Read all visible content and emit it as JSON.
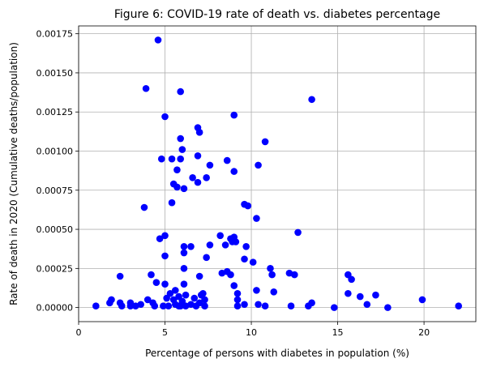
{
  "chart_data": {
    "type": "scatter",
    "title": "Figure 6: COVID-19 rate of death vs. diabetes percentage",
    "xlabel": "Percentage of persons with diabetes in population (%)",
    "ylabel": "Rate of death in 2020 (Cumulative deaths/population)",
    "xlim": [
      0,
      23
    ],
    "ylim": [
      -9e-05,
      0.0018
    ],
    "xticks": [
      0,
      5,
      10,
      15,
      20
    ],
    "xtick_labels": [
      "0",
      "5",
      "10",
      "15",
      "20"
    ],
    "yticks": [
      0,
      0.00025,
      0.0005,
      0.00075,
      0.001,
      0.00125,
      0.0015,
      0.00175
    ],
    "ytick_labels": [
      "0.00000",
      "0.00025",
      "0.00050",
      "0.00075",
      "0.00100",
      "0.00125",
      "0.00150",
      "0.00175"
    ],
    "grid": true,
    "marker_color": "#0000ff",
    "points": [
      [
        1.0,
        1e-05
      ],
      [
        1.8,
        3e-05
      ],
      [
        1.9,
        5e-05
      ],
      [
        2.4,
        0.0002
      ],
      [
        2.4,
        3e-05
      ],
      [
        2.5,
        1e-05
      ],
      [
        3.0,
        3e-05
      ],
      [
        3.0,
        1e-05
      ],
      [
        3.3,
        1e-05
      ],
      [
        3.6,
        2e-05
      ],
      [
        3.8,
        0.00064
      ],
      [
        3.9,
        0.0014
      ],
      [
        4.0,
        5e-05
      ],
      [
        4.2,
        0.00021
      ],
      [
        4.3,
        3e-05
      ],
      [
        4.4,
        1e-05
      ],
      [
        4.5,
        0.00016
      ],
      [
        4.6,
        0.00171
      ],
      [
        4.7,
        0.00044
      ],
      [
        4.8,
        0.00095
      ],
      [
        4.9,
        1e-05
      ],
      [
        5.0,
        0.00046
      ],
      [
        5.0,
        0.00033
      ],
      [
        5.0,
        0.00015
      ],
      [
        5.0,
        0.00122
      ],
      [
        5.1,
        6e-05
      ],
      [
        5.2,
        1e-05
      ],
      [
        5.3,
        9e-05
      ],
      [
        5.4,
        0.00095
      ],
      [
        5.4,
        0.00067
      ],
      [
        5.5,
        0.00079
      ],
      [
        5.5,
        5e-05
      ],
      [
        5.6,
        0.00011
      ],
      [
        5.6,
        2e-05
      ],
      [
        5.7,
        0.00088
      ],
      [
        5.7,
        0.00077
      ],
      [
        5.8,
        1e-05
      ],
      [
        5.8,
        7e-05
      ],
      [
        5.9,
        0.00138
      ],
      [
        5.9,
        0.00108
      ],
      [
        5.9,
        0.00095
      ],
      [
        5.9,
        1e-05
      ],
      [
        6.0,
        0.00101
      ],
      [
        6.0,
        4e-05
      ],
      [
        6.1,
        0.00076
      ],
      [
        6.1,
        0.00039
      ],
      [
        6.1,
        0.00035
      ],
      [
        6.1,
        0.00025
      ],
      [
        6.1,
        0.00015
      ],
      [
        6.2,
        8e-05
      ],
      [
        6.2,
        1e-05
      ],
      [
        6.5,
        0.00039
      ],
      [
        6.5,
        2e-05
      ],
      [
        6.6,
        0.00083
      ],
      [
        6.7,
        6e-05
      ],
      [
        6.8,
        1e-05
      ],
      [
        6.9,
        0.00115
      ],
      [
        6.9,
        0.00097
      ],
      [
        6.9,
        0.0008
      ],
      [
        7.0,
        0.00112
      ],
      [
        7.0,
        0.0002
      ],
      [
        7.0,
        3e-05
      ],
      [
        7.1,
        8e-05
      ],
      [
        7.2,
        9e-05
      ],
      [
        7.3,
        5e-05
      ],
      [
        7.3,
        1e-05
      ],
      [
        7.4,
        0.00032
      ],
      [
        7.4,
        0.00083
      ],
      [
        7.6,
        0.00091
      ],
      [
        7.6,
        0.0004
      ],
      [
        8.2,
        0.00046
      ],
      [
        8.3,
        0.00022
      ],
      [
        8.5,
        0.0004
      ],
      [
        8.6,
        0.00094
      ],
      [
        8.6,
        0.00023
      ],
      [
        8.8,
        0.00021
      ],
      [
        8.8,
        0.00044
      ],
      [
        8.9,
        0.00042
      ],
      [
        9.0,
        0.00123
      ],
      [
        9.0,
        0.00087
      ],
      [
        9.0,
        0.00045
      ],
      [
        9.0,
        0.00014
      ],
      [
        9.1,
        0.00042
      ],
      [
        9.2,
        9e-05
      ],
      [
        9.2,
        5e-05
      ],
      [
        9.2,
        1e-05
      ],
      [
        9.6,
        0.00066
      ],
      [
        9.6,
        0.00031
      ],
      [
        9.6,
        2e-05
      ],
      [
        9.7,
        0.00039
      ],
      [
        9.8,
        0.00065
      ],
      [
        10.1,
        0.00029
      ],
      [
        10.3,
        0.00057
      ],
      [
        10.3,
        0.00011
      ],
      [
        10.4,
        0.00091
      ],
      [
        10.4,
        2e-05
      ],
      [
        10.8,
        0.00106
      ],
      [
        10.8,
        1e-05
      ],
      [
        11.1,
        0.00025
      ],
      [
        11.2,
        0.00021
      ],
      [
        11.3,
        0.0001
      ],
      [
        12.2,
        0.00022
      ],
      [
        12.3,
        1e-05
      ],
      [
        12.5,
        0.00021
      ],
      [
        12.7,
        0.00048
      ],
      [
        13.3,
        1e-05
      ],
      [
        13.5,
        0.00133
      ],
      [
        13.5,
        3e-05
      ],
      [
        14.8,
        0.0
      ],
      [
        15.6,
        0.00021
      ],
      [
        15.6,
        9e-05
      ],
      [
        15.8,
        0.00018
      ],
      [
        16.3,
        7e-05
      ],
      [
        16.7,
        2e-05
      ],
      [
        17.2,
        8e-05
      ],
      [
        17.9,
        0.0
      ],
      [
        19.9,
        5e-05
      ],
      [
        22.0,
        1e-05
      ]
    ]
  }
}
